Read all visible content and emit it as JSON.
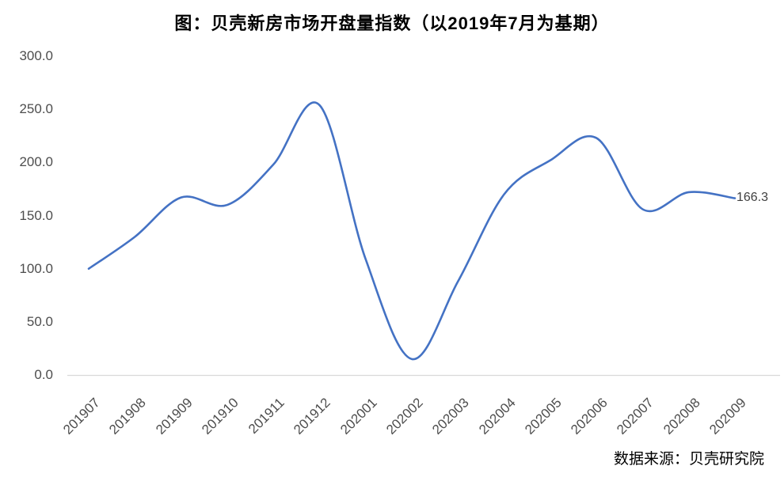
{
  "header": {
    "title": "图：贝壳新房市场开盘量指数（以2019年7月为基期）"
  },
  "footer": {
    "source": "数据来源：贝壳研究院"
  },
  "chart_data": {
    "type": "line",
    "title": "图：贝壳新房市场开盘量指数（以2019年7月为基期）",
    "categories": [
      "201907",
      "201908",
      "201909",
      "201910",
      "201911",
      "201912",
      "202001",
      "202002",
      "202003",
      "202004",
      "202005",
      "202006",
      "202007",
      "202008",
      "202009"
    ],
    "values": [
      100.0,
      130.0,
      167.0,
      160.0,
      198.0,
      254.0,
      109.0,
      15.0,
      88.0,
      170.0,
      202.0,
      223.0,
      156.0,
      172.0,
      166.3
    ],
    "end_label": "166.3",
    "xlabel": "",
    "ylabel": "",
    "ylim": [
      0,
      300
    ],
    "ytick_labels": [
      "300.0",
      "250.0",
      "200.0",
      "150.0",
      "100.0",
      "50.0",
      "0.0"
    ],
    "grid": false,
    "legend": "none",
    "smoothed": true,
    "line_color": "#4472C4",
    "axis_color": "#D9D9D9",
    "tick_label_color": "#4d4d4d",
    "source": "数据来源：贝壳研究院"
  }
}
